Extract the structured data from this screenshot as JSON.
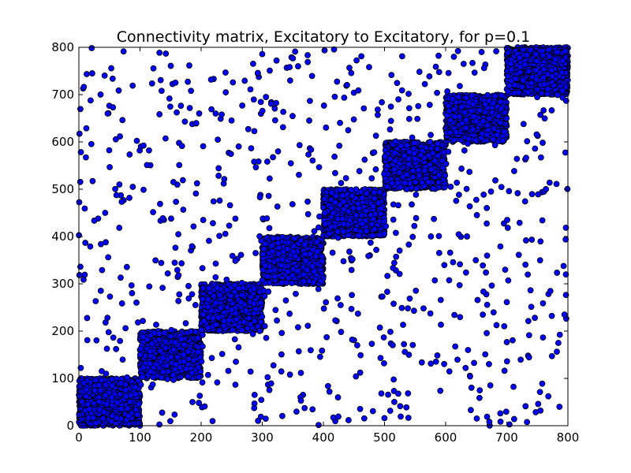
{
  "chart_data": {
    "type": "scatter",
    "title": "Connectivity matrix, Excitatory to Excitatory, for p=0.1",
    "xlabel": "",
    "ylabel": "",
    "xlim": [
      0,
      800
    ],
    "ylim": [
      0,
      800
    ],
    "xticks": [
      "0",
      "100",
      "200",
      "300",
      "400",
      "500",
      "600",
      "700",
      "800"
    ],
    "yticks": [
      "0",
      "100",
      "200",
      "300",
      "400",
      "500",
      "600",
      "700",
      "800"
    ],
    "grid": false,
    "legend": "none",
    "marker_color": "#0000ff",
    "marker_edge_color": "#000000",
    "series": [
      {
        "blocks": [
          {
            "x": [
              0,
              100
            ],
            "y": [
              0,
              100
            ],
            "density": "dense"
          },
          {
            "x": [
              100,
              200
            ],
            "y": [
              100,
              200
            ],
            "density": "dense"
          },
          {
            "x": [
              200,
              300
            ],
            "y": [
              200,
              300
            ],
            "density": "dense"
          },
          {
            "x": [
              300,
              400
            ],
            "y": [
              300,
              400
            ],
            "density": "dense"
          },
          {
            "x": [
              400,
              500
            ],
            "y": [
              400,
              500
            ],
            "density": "dense"
          },
          {
            "x": [
              500,
              600
            ],
            "y": [
              500,
              600
            ],
            "density": "dense"
          },
          {
            "x": [
              600,
              700
            ],
            "y": [
              600,
              700
            ],
            "density": "dense"
          },
          {
            "x": [
              700,
              800
            ],
            "y": [
              700,
              800
            ],
            "density": "dense"
          }
        ],
        "off_block_density": "sparse"
      }
    ]
  }
}
